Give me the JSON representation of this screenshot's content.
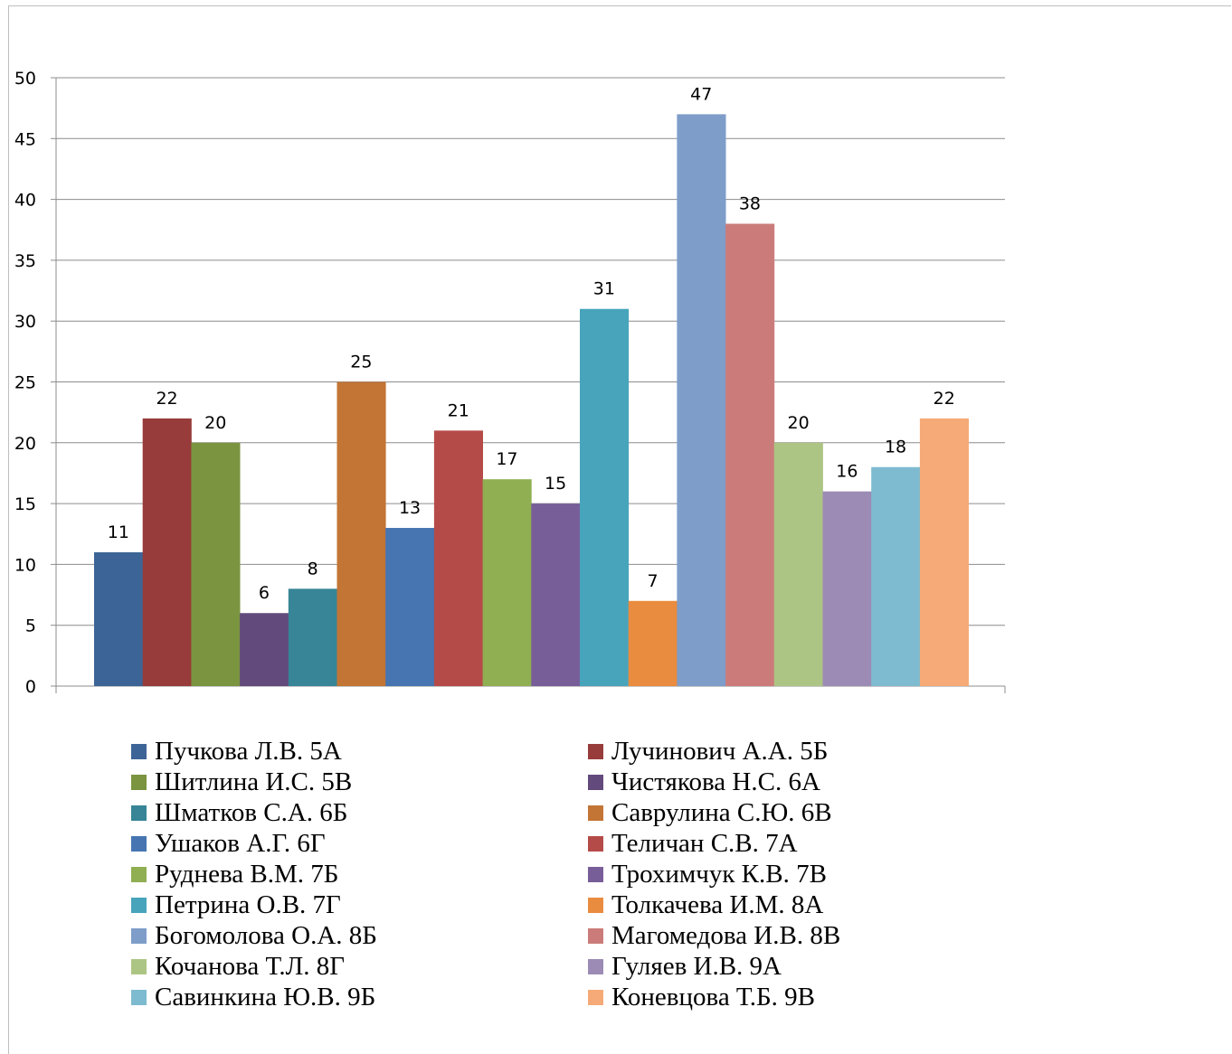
{
  "chart_data": {
    "type": "bar",
    "title": "",
    "xlabel": "",
    "ylabel": "",
    "ylim": [
      0,
      50
    ],
    "yticks": [
      0,
      5,
      10,
      15,
      20,
      25,
      30,
      35,
      40,
      45,
      50
    ],
    "grid": true,
    "legend_position": "bottom",
    "categories": [
      "Пучкова Л.В. 5А",
      "Лучинович А.А. 5Б",
      "Шитлина И.С. 5В",
      "Чистякова Н.С. 6А",
      "Шматков С.А. 6Б",
      "Саврулина С.Ю. 6В",
      "Ушаков А.Г. 6Г",
      "Теличан С.В. 7А",
      "Руднева В.М. 7Б",
      "Трохимчук К.В. 7В",
      "Петрина О.В. 7Г",
      "Толкачева И.М. 8А",
      "Богомолова О.А. 8Б",
      "Магомедова И.В. 8В",
      "Кочанова Т.Л. 8Г",
      "Гуляев И.В. 9А",
      "Савинкина Ю.В. 9Б",
      "Коневцова Т.Б. 9В"
    ],
    "values": [
      11,
      22,
      20,
      6,
      8,
      25,
      13,
      21,
      17,
      15,
      31,
      7,
      47,
      38,
      20,
      16,
      18,
      22
    ],
    "colors": [
      "#3d6496",
      "#973c3a",
      "#7a9440",
      "#634a7c",
      "#378597",
      "#c27535",
      "#4675b1",
      "#b54b49",
      "#90ae52",
      "#785e99",
      "#47a4bb",
      "#e98c3f",
      "#7e9dc9",
      "#cb7c7a",
      "#adc584",
      "#9c8bb4",
      "#7ebbd0",
      "#f6aa77"
    ]
  }
}
